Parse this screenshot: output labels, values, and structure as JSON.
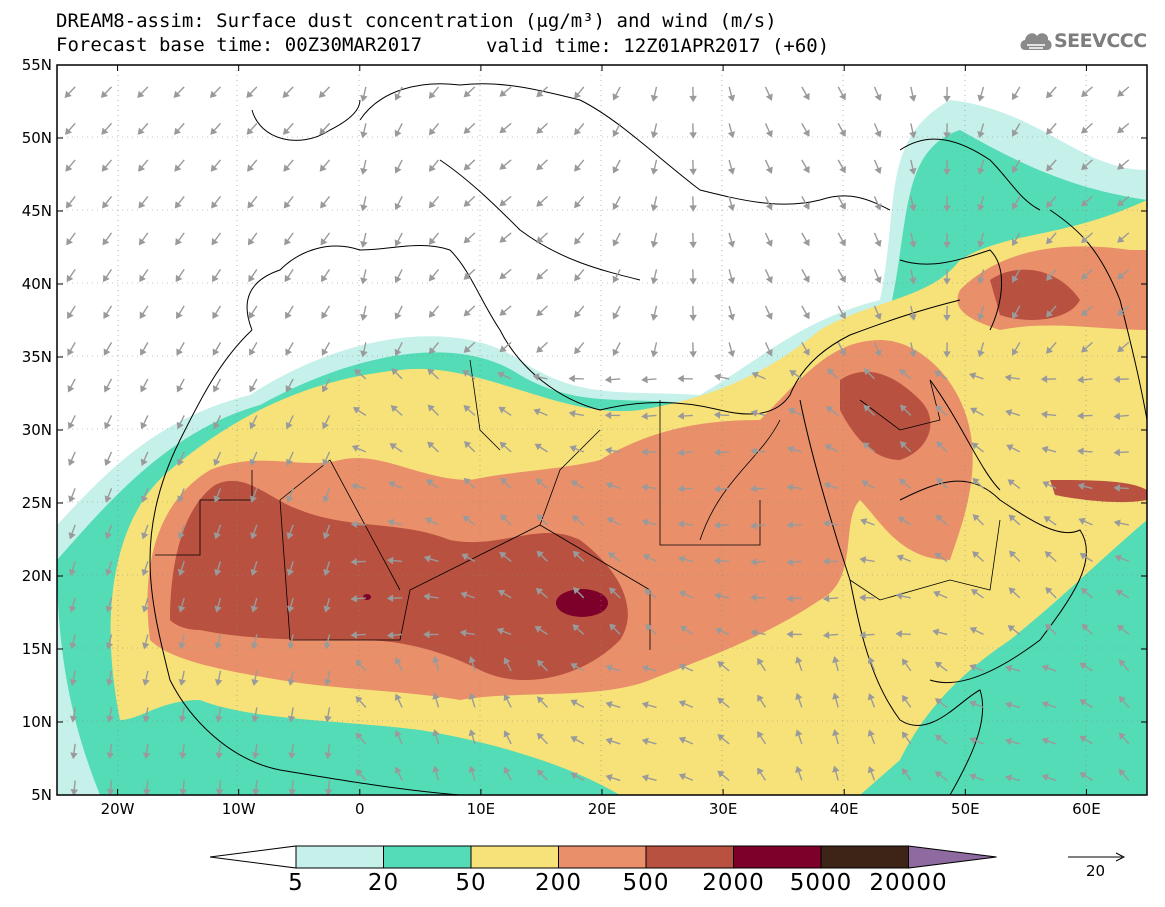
{
  "header": {
    "line1": "DREAM8-assim: Surface dust concentration (μg/m³) and wind (m/s)",
    "line2": "Forecast base time: 00Z30MAR2017",
    "valid": "valid time: 12Z01APR2017 (+60)",
    "logo_text": "SEEVCCC"
  },
  "axes": {
    "lat_labels": [
      "55N",
      "50N",
      "45N",
      "40N",
      "35N",
      "30N",
      "25N",
      "20N",
      "15N",
      "10N",
      "5N"
    ],
    "lon_labels": [
      "20W",
      "10W",
      "0",
      "10E",
      "20E",
      "30E",
      "40E",
      "50E",
      "60E"
    ],
    "lon_range": [
      -25,
      65
    ],
    "lat_range": [
      5,
      55
    ]
  },
  "colorbar": {
    "levels": [
      "5",
      "20",
      "50",
      "200",
      "500",
      "2000",
      "5000",
      "20000"
    ],
    "colors": [
      "#ffffff",
      "#c6f0ea",
      "#53dcb6",
      "#f7e27a",
      "#e9906a",
      "#b8513f",
      "#7c0029",
      "#3d2416",
      "#8e6aa0"
    ]
  },
  "wind_reference": {
    "value": "20"
  },
  "legend_icons": {
    "logo": "cloud-icon",
    "reference": "arrow-icon"
  }
}
